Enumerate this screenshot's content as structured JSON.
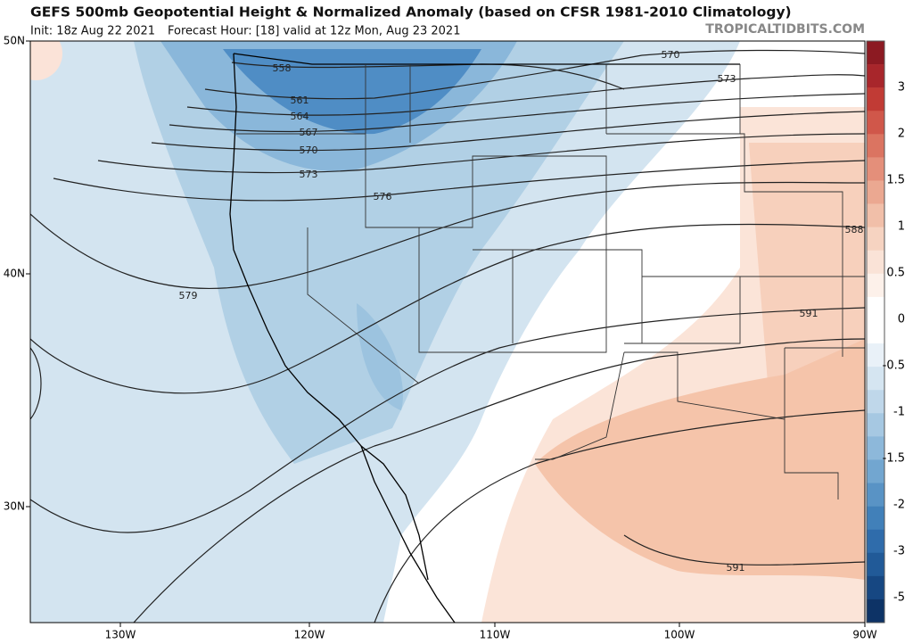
{
  "header": {
    "title": "GEFS 500mb Geopotential Height & Normalized Anomaly (based on CFSR 1981-2010 Climatology)",
    "subtitle": [
      "Init: 18z Aug 22 2021",
      "Forecast Hour: [18]  valid at 12z Mon, Aug 23 2021"
    ],
    "credit": "TROPICALTIDBITS.COM"
  },
  "map": {
    "latitude_labels": [
      "50N",
      "40N",
      "30N"
    ],
    "longitude_labels": [
      "130W",
      "120W",
      "110W",
      "100W",
      "90W"
    ],
    "contour_labels": [
      "558",
      "561",
      "564",
      "567",
      "570",
      "573",
      "576",
      "579",
      "570",
      "573",
      "588",
      "591",
      "591"
    ]
  },
  "colorbar": {
    "labels": [
      "3",
      "2",
      "1.5",
      "1",
      "0.5",
      "0",
      "-0.5",
      "-1",
      "-1.5",
      "-2",
      "-3",
      "-5"
    ]
  }
}
